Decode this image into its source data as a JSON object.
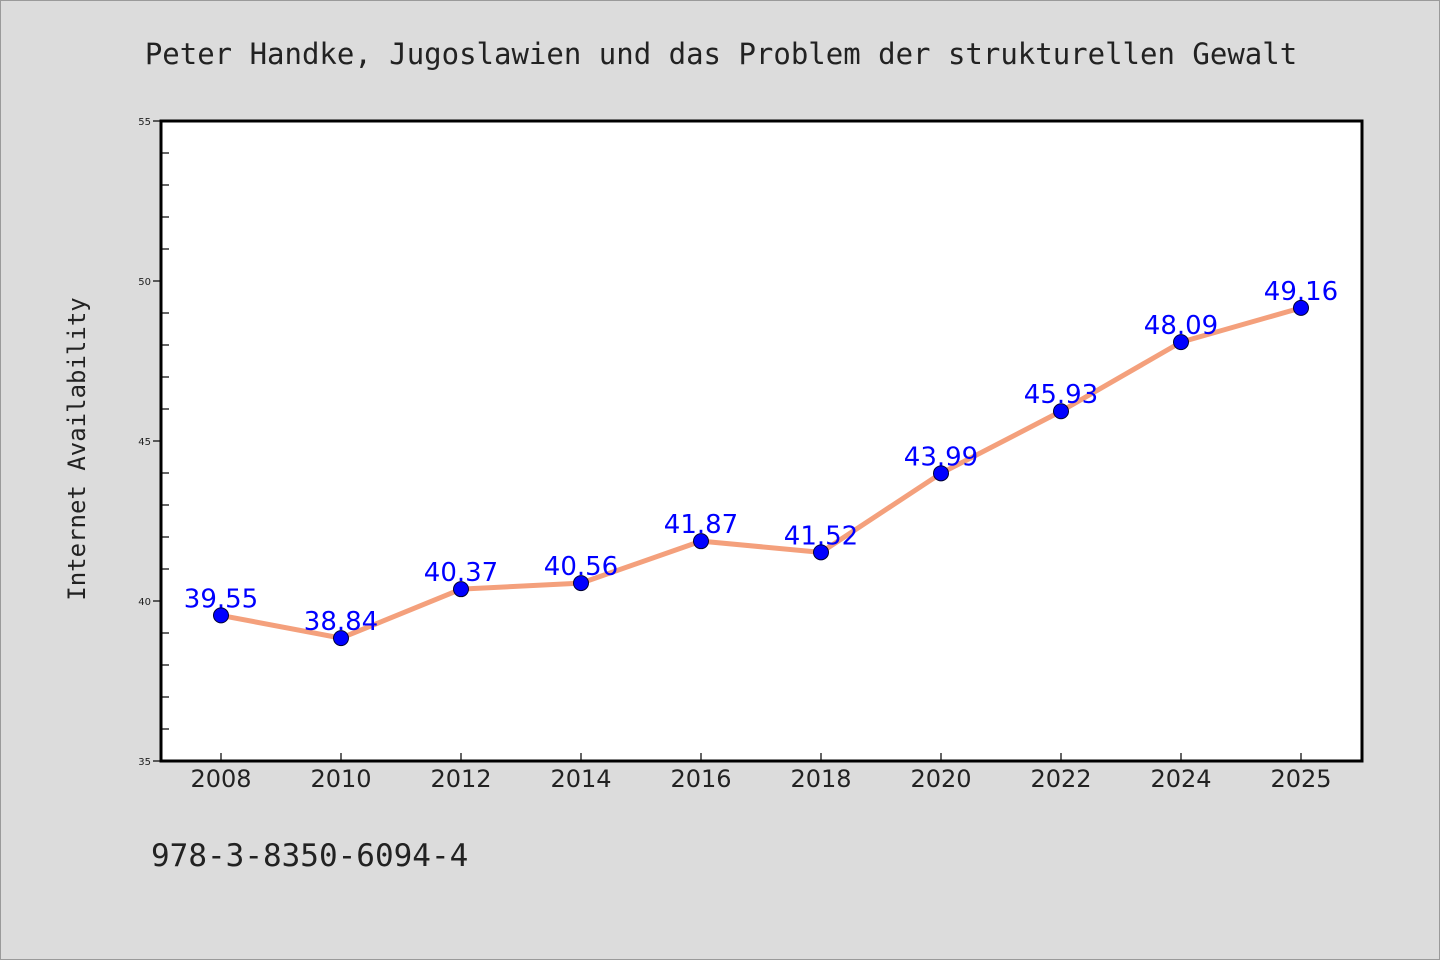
{
  "footer": {
    "isbn": "978-3-8350-6094-4"
  },
  "colors": {
    "background": "#dcdcdc",
    "plot_background": "#ffffff",
    "line": "#f4a07c",
    "marker": "#0000ff",
    "data_label": "#0000ff",
    "text": "#222222"
  },
  "chart_data": {
    "type": "line",
    "title": "Peter Handke, Jugoslawien und das Problem der strukturellen Gewalt",
    "xlabel": "",
    "ylabel": "Internet Availability",
    "categories": [
      "2008",
      "2010",
      "2012",
      "2014",
      "2016",
      "2018",
      "2020",
      "2022",
      "2024",
      "2025"
    ],
    "series": [
      {
        "values": [
          39.55,
          38.84,
          40.37,
          40.56,
          41.87,
          41.52,
          43.99,
          45.93,
          48.09,
          49.16
        ],
        "labels": [
          "39.55",
          "38.84",
          "40.37",
          "40.56",
          "41.87",
          "41.52",
          "43.99",
          "45.93",
          "48.09",
          "49.16"
        ]
      }
    ],
    "ylim": [
      35,
      55
    ],
    "yticks": [
      "35",
      "40",
      "45",
      "50",
      "55"
    ],
    "grid": false,
    "legend": "none"
  }
}
